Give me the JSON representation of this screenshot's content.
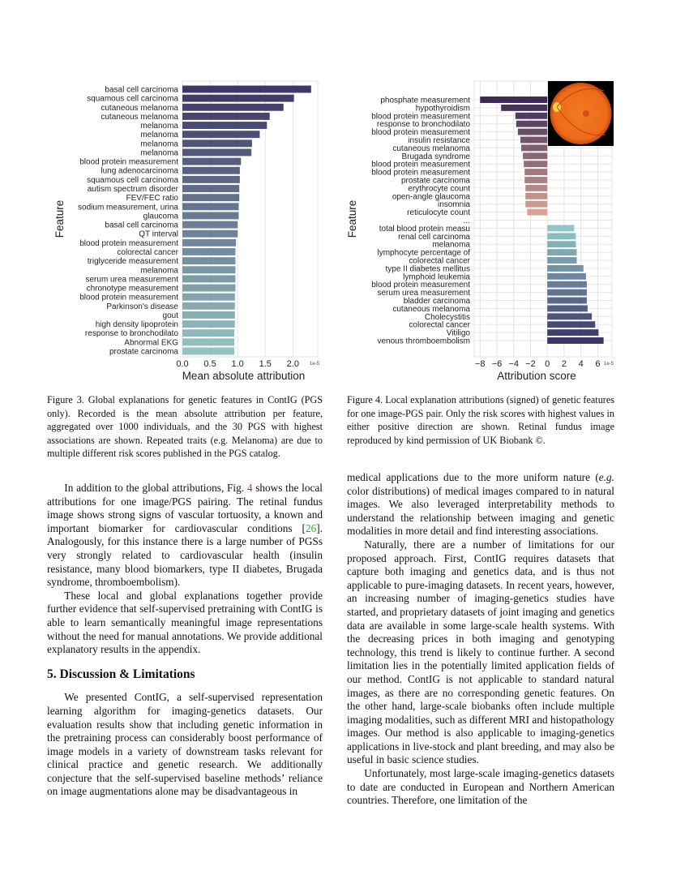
{
  "chart_data": [
    {
      "type": "bar",
      "orientation": "horizontal",
      "ylabel": "Feature",
      "xlabel": "Mean absolute attribution",
      "x_scale_note": "1e-5",
      "xlim": [
        0,
        2.45
      ],
      "xticks": [
        "0.0",
        "0.5",
        "1.0",
        "1.5",
        "2.0"
      ],
      "grid": "vertical",
      "color_range": [
        "#3f3766",
        "#93c2c1"
      ],
      "categories": [
        "basal cell carcinoma",
        "squamous cell carcinoma",
        "cutaneous melanoma",
        "cutaneous melanoma",
        "melanoma",
        "melanoma",
        "melanoma",
        "melanoma",
        "blood protein measurement",
        "lung adenocarcinoma",
        "squamous cell carcinoma",
        "autism spectrum disorder",
        "FEV/FEC ratio",
        "sodium measurement, urina",
        "glaucoma",
        "basal cell carcinoma",
        "QT interval",
        "blood protein measurement",
        "colorectal cancer",
        "triglyceride measurement",
        "melanoma",
        "serum urea measurement",
        "chronotype measurement",
        "blood protein measurement",
        "Parkinson's disease",
        "gout",
        "high density lipoprotein",
        "response to bronchodilato",
        "Abnormal EKG",
        "prostate carcinoma"
      ],
      "values": [
        2.33,
        2.02,
        1.83,
        1.58,
        1.53,
        1.4,
        1.26,
        1.25,
        1.06,
        1.04,
        1.04,
        1.03,
        1.03,
        1.02,
        1.02,
        1.0,
        1.0,
        0.97,
        0.96,
        0.96,
        0.96,
        0.96,
        0.96,
        0.95,
        0.95,
        0.95,
        0.95,
        0.94,
        0.94,
        0.94
      ]
    },
    {
      "type": "bar",
      "orientation": "horizontal",
      "ylabel": "Feature",
      "xlabel": "Attribution score",
      "x_scale_note": "1e-5",
      "xlim": [
        -8.7,
        7.7
      ],
      "xticks": [
        "−8",
        "−6",
        "−4",
        "−2",
        "0",
        "2",
        "4",
        "6"
      ],
      "grid": "both",
      "negative_color_range": [
        "#3b2a55",
        "#d8a393"
      ],
      "positive_color_range": [
        "#8fc7c9",
        "#3d3566"
      ],
      "inset_image": "retinal-fundus-image",
      "categories": [
        "phosphate measurement",
        "hypothyroidism",
        "blood protein measurement",
        "response to bronchodilato",
        "blood protein measurement",
        "insulin resistance",
        "cutaneous melanoma",
        "Brugada syndrome",
        "blood protein measurement",
        "blood protein measurement",
        "prostate carcinoma",
        "erythrocyte count",
        "open-angle glaucoma",
        "insomnia",
        "reticulocyte count",
        "...",
        "total blood protein measu",
        "renal cell carcinoma",
        "melanoma",
        "lymphocyte percentage of",
        "colorectal cancer",
        "type II diabetes mellitus",
        "lymphoid leukemia",
        "blood protein measurement",
        "serum urea measurement",
        "bladder carcinoma",
        "cutaneous melanoma",
        "Cholecystitis",
        "colorectal cancer",
        "Vitiligo",
        "venous thromboembolism"
      ],
      "values": [
        -8.0,
        -5.5,
        -3.8,
        -3.7,
        -3.5,
        -3.2,
        -3.1,
        -2.9,
        -2.8,
        -2.7,
        -2.7,
        -2.6,
        -2.6,
        -2.6,
        -2.4,
        null,
        3.2,
        3.4,
        3.4,
        3.5,
        3.5,
        4.3,
        4.6,
        4.7,
        4.7,
        4.7,
        4.8,
        5.3,
        5.7,
        6.1,
        6.7
      ]
    }
  ],
  "captions": {
    "fig3": "Figure 3. Global explanations for genetic features in ContIG (PGS only). Recorded is the mean absolute attribution per feature, aggregated over 1000 individuals, and the 30 PGS with highest associations are shown. Repeated traits (e.g. Melanoma) are due to multiple different risk scores published in the PGS catalog.",
    "fig4": "Figure 4. Local explanation attributions (signed) of genetic features for one image-PGS pair. Only the risk scores with highest values in either positive direction are shown. Retinal fundus image reproduced by kind permission of UK Biobank ©."
  },
  "left_column": {
    "p1_a": "In addition to the global attributions, Fig. ",
    "p1_ref": "4",
    "p1_b": " shows the local attributions for one image/PGS pairing. The retinal fundus image shows strong signs of vascular tortuosity, a known and important biomarker for cardiovascular conditions [",
    "p1_cite": "26",
    "p1_c": "]. Analogously, for this instance there is a large number of PGSs very strongly related to cardiovascular health (insulin resistance, many blood biomarkers, type II diabetes, Brugada syndrome, thromboembolism).",
    "p2": "These local and global explanations together provide further evidence that self-supervised pretraining with ContIG is able to learn semantically meaningful image representations without the need for manual annotations. We provide additional explanatory results in the appendix.",
    "section_title": "5. Discussion & Limitations",
    "p3": "We presented ContIG, a self-supervised representation learning algorithm for imaging-genetics datasets. Our evaluation results show that including genetic information in the pretraining process can considerably boost performance of image models in a variety of downstream tasks relevant for clinical practice and genetic research. We additionally conjecture that the self-supervised baseline methods’ reliance on image augmentations alone may be disadvantageous in"
  },
  "right_column": {
    "p1_a": "medical applications due to the more uniform nature (",
    "p1_eg": "e.g.",
    "p1_b": " color distributions) of medical images compared to in natural images. We also leveraged interpretability methods to understand the relationship between imaging and genetic modalities in more detail and find interesting associations.",
    "p2": "Naturally, there are a number of limitations for our proposed approach. First, ContIG requires datasets that capture both imaging and genetics data, and is thus not applicable to pure-imaging datasets. In recent years, however, an increasing number of imaging-genetics studies have started, and proprietary datasets of joint imaging and genetics data are available in some large-scale health systems. With the decreasing prices in both imaging and genotyping technology, this trend is likely to continue further. A second limitation lies in the potentially limited application fields of our method. ContIG is not applicable to standard natural images, as there are no corresponding genetic features. On the other hand, large-scale biobanks often include multiple imaging modalities, such as different MRI and histopathology images. Our method is also applicable to imaging-genetics applications in live-stock and plant breeding, and may also be useful in basic science studies.",
    "p3": "Unfortunately, most large-scale imaging-genetics datasets to date are conducted in European and Northern American countries. Therefore, one limitation of the"
  }
}
